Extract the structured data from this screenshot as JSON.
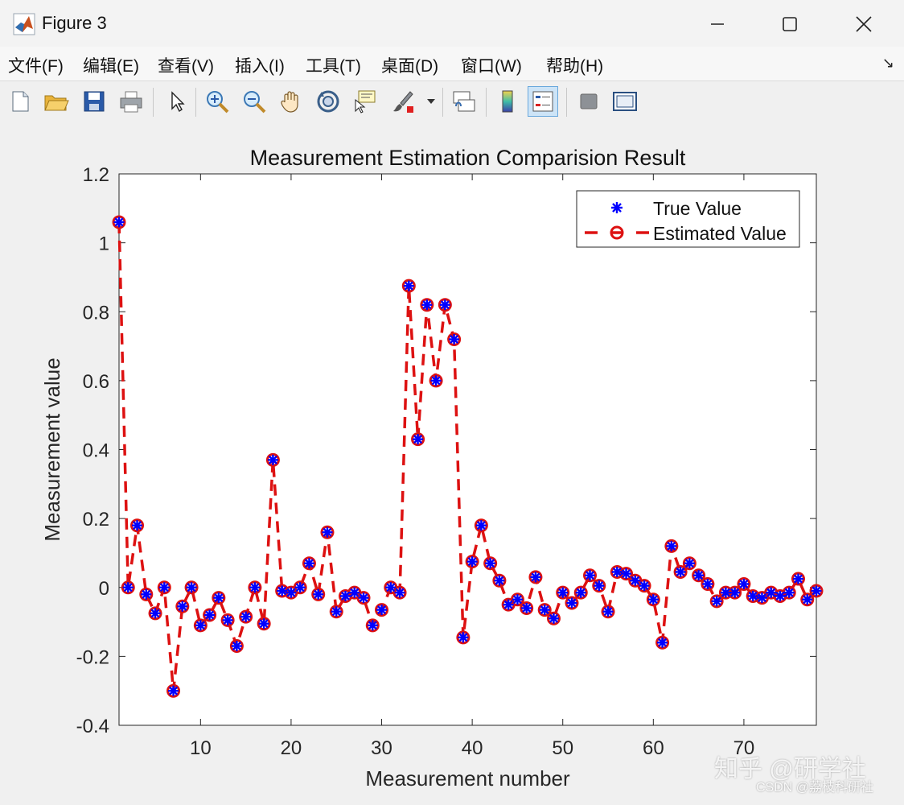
{
  "window": {
    "title": "Figure 3"
  },
  "menu": {
    "items": [
      "文件(F)",
      "编辑(E)",
      "查看(V)",
      "插入(I)",
      "工具(T)",
      "桌面(D)",
      "窗口(W)",
      "帮助(H)"
    ]
  },
  "toolbar": {
    "tools": [
      "new-file",
      "open-file",
      "save",
      "print",
      "select-pointer",
      "zoom-in",
      "zoom-out",
      "pan",
      "rotate-3d",
      "data-cursor",
      "brush",
      "brush-dropdown",
      "link-plot",
      "colorbar",
      "legend",
      "hide-plot-tools",
      "show-plot-tools"
    ]
  },
  "watermark": {
    "main": "知乎 @研学社",
    "sub": "CSDN @荔枝科研社"
  },
  "chart_data": {
    "type": "line",
    "title": "Measurement Estimation Comparision Result",
    "xlabel": "Measurement number",
    "ylabel": "Measurement value",
    "xlim": [
      1,
      78
    ],
    "ylim": [
      -0.4,
      1.2
    ],
    "xticks": [
      10,
      20,
      30,
      40,
      50,
      60,
      70
    ],
    "yticks": [
      -0.4,
      -0.2,
      0,
      0.2,
      0.4,
      0.6,
      0.8,
      1,
      1.2
    ],
    "ytick_labels": [
      "-0.4",
      "-0.2",
      "0",
      "0.2",
      "0.4",
      "0.6",
      "0.8",
      "1",
      "1.2"
    ],
    "legend_position": "top-right",
    "grid": false,
    "colors": {
      "true": "#0000ff",
      "estimated": "#dd1111"
    },
    "x": [
      1,
      2,
      3,
      4,
      5,
      6,
      7,
      8,
      9,
      10,
      11,
      12,
      13,
      14,
      15,
      16,
      17,
      18,
      19,
      20,
      21,
      22,
      23,
      24,
      25,
      26,
      27,
      28,
      29,
      30,
      31,
      32,
      33,
      34,
      35,
      36,
      37,
      38,
      39,
      40,
      41,
      42,
      43,
      44,
      45,
      46,
      47,
      48,
      49,
      50,
      51,
      52,
      53,
      54,
      55,
      56,
      57,
      58,
      59,
      60,
      61,
      62,
      63,
      64,
      65,
      66,
      67,
      68,
      69,
      70,
      71,
      72,
      73,
      74,
      75,
      76,
      77,
      78
    ],
    "series": [
      {
        "name": "True Value",
        "style": "marker-star",
        "values": [
          1.06,
          0.0,
          0.18,
          -0.02,
          -0.075,
          0.0,
          -0.3,
          -0.055,
          0.0,
          -0.11,
          -0.08,
          -0.03,
          -0.095,
          -0.17,
          -0.085,
          0.0,
          -0.105,
          0.37,
          -0.01,
          -0.015,
          0.0,
          0.07,
          -0.02,
          0.16,
          -0.07,
          -0.025,
          -0.015,
          -0.03,
          -0.11,
          -0.065,
          0.0,
          -0.015,
          0.875,
          0.43,
          0.82,
          0.6,
          0.82,
          0.72,
          -0.145,
          0.075,
          0.18,
          0.07,
          0.02,
          -0.05,
          -0.035,
          -0.06,
          0.03,
          -0.065,
          -0.09,
          -0.015,
          -0.045,
          -0.015,
          0.035,
          0.005,
          -0.07,
          0.045,
          0.04,
          0.02,
          0.005,
          -0.035,
          -0.16,
          0.12,
          0.045,
          0.07,
          0.035,
          0.01,
          -0.04,
          -0.015,
          -0.015,
          0.01,
          -0.025,
          -0.03,
          -0.015,
          -0.025,
          -0.015,
          0.025,
          -0.035,
          -0.01
        ]
      },
      {
        "name": "Estimated Value",
        "style": "dashed-circle",
        "values": [
          1.06,
          0.0,
          0.18,
          -0.02,
          -0.075,
          0.0,
          -0.3,
          -0.055,
          0.0,
          -0.11,
          -0.08,
          -0.03,
          -0.095,
          -0.17,
          -0.085,
          0.0,
          -0.105,
          0.37,
          -0.01,
          -0.015,
          0.0,
          0.07,
          -0.02,
          0.16,
          -0.07,
          -0.025,
          -0.015,
          -0.03,
          -0.11,
          -0.065,
          0.0,
          -0.015,
          0.875,
          0.43,
          0.82,
          0.6,
          0.82,
          0.72,
          -0.145,
          0.075,
          0.18,
          0.07,
          0.02,
          -0.05,
          -0.035,
          -0.06,
          0.03,
          -0.065,
          -0.09,
          -0.015,
          -0.045,
          -0.015,
          0.035,
          0.005,
          -0.07,
          0.045,
          0.04,
          0.02,
          0.005,
          -0.035,
          -0.16,
          0.12,
          0.045,
          0.07,
          0.035,
          0.01,
          -0.04,
          -0.015,
          -0.015,
          0.01,
          -0.025,
          -0.03,
          -0.015,
          -0.025,
          -0.015,
          0.025,
          -0.035,
          -0.01
        ]
      }
    ]
  }
}
